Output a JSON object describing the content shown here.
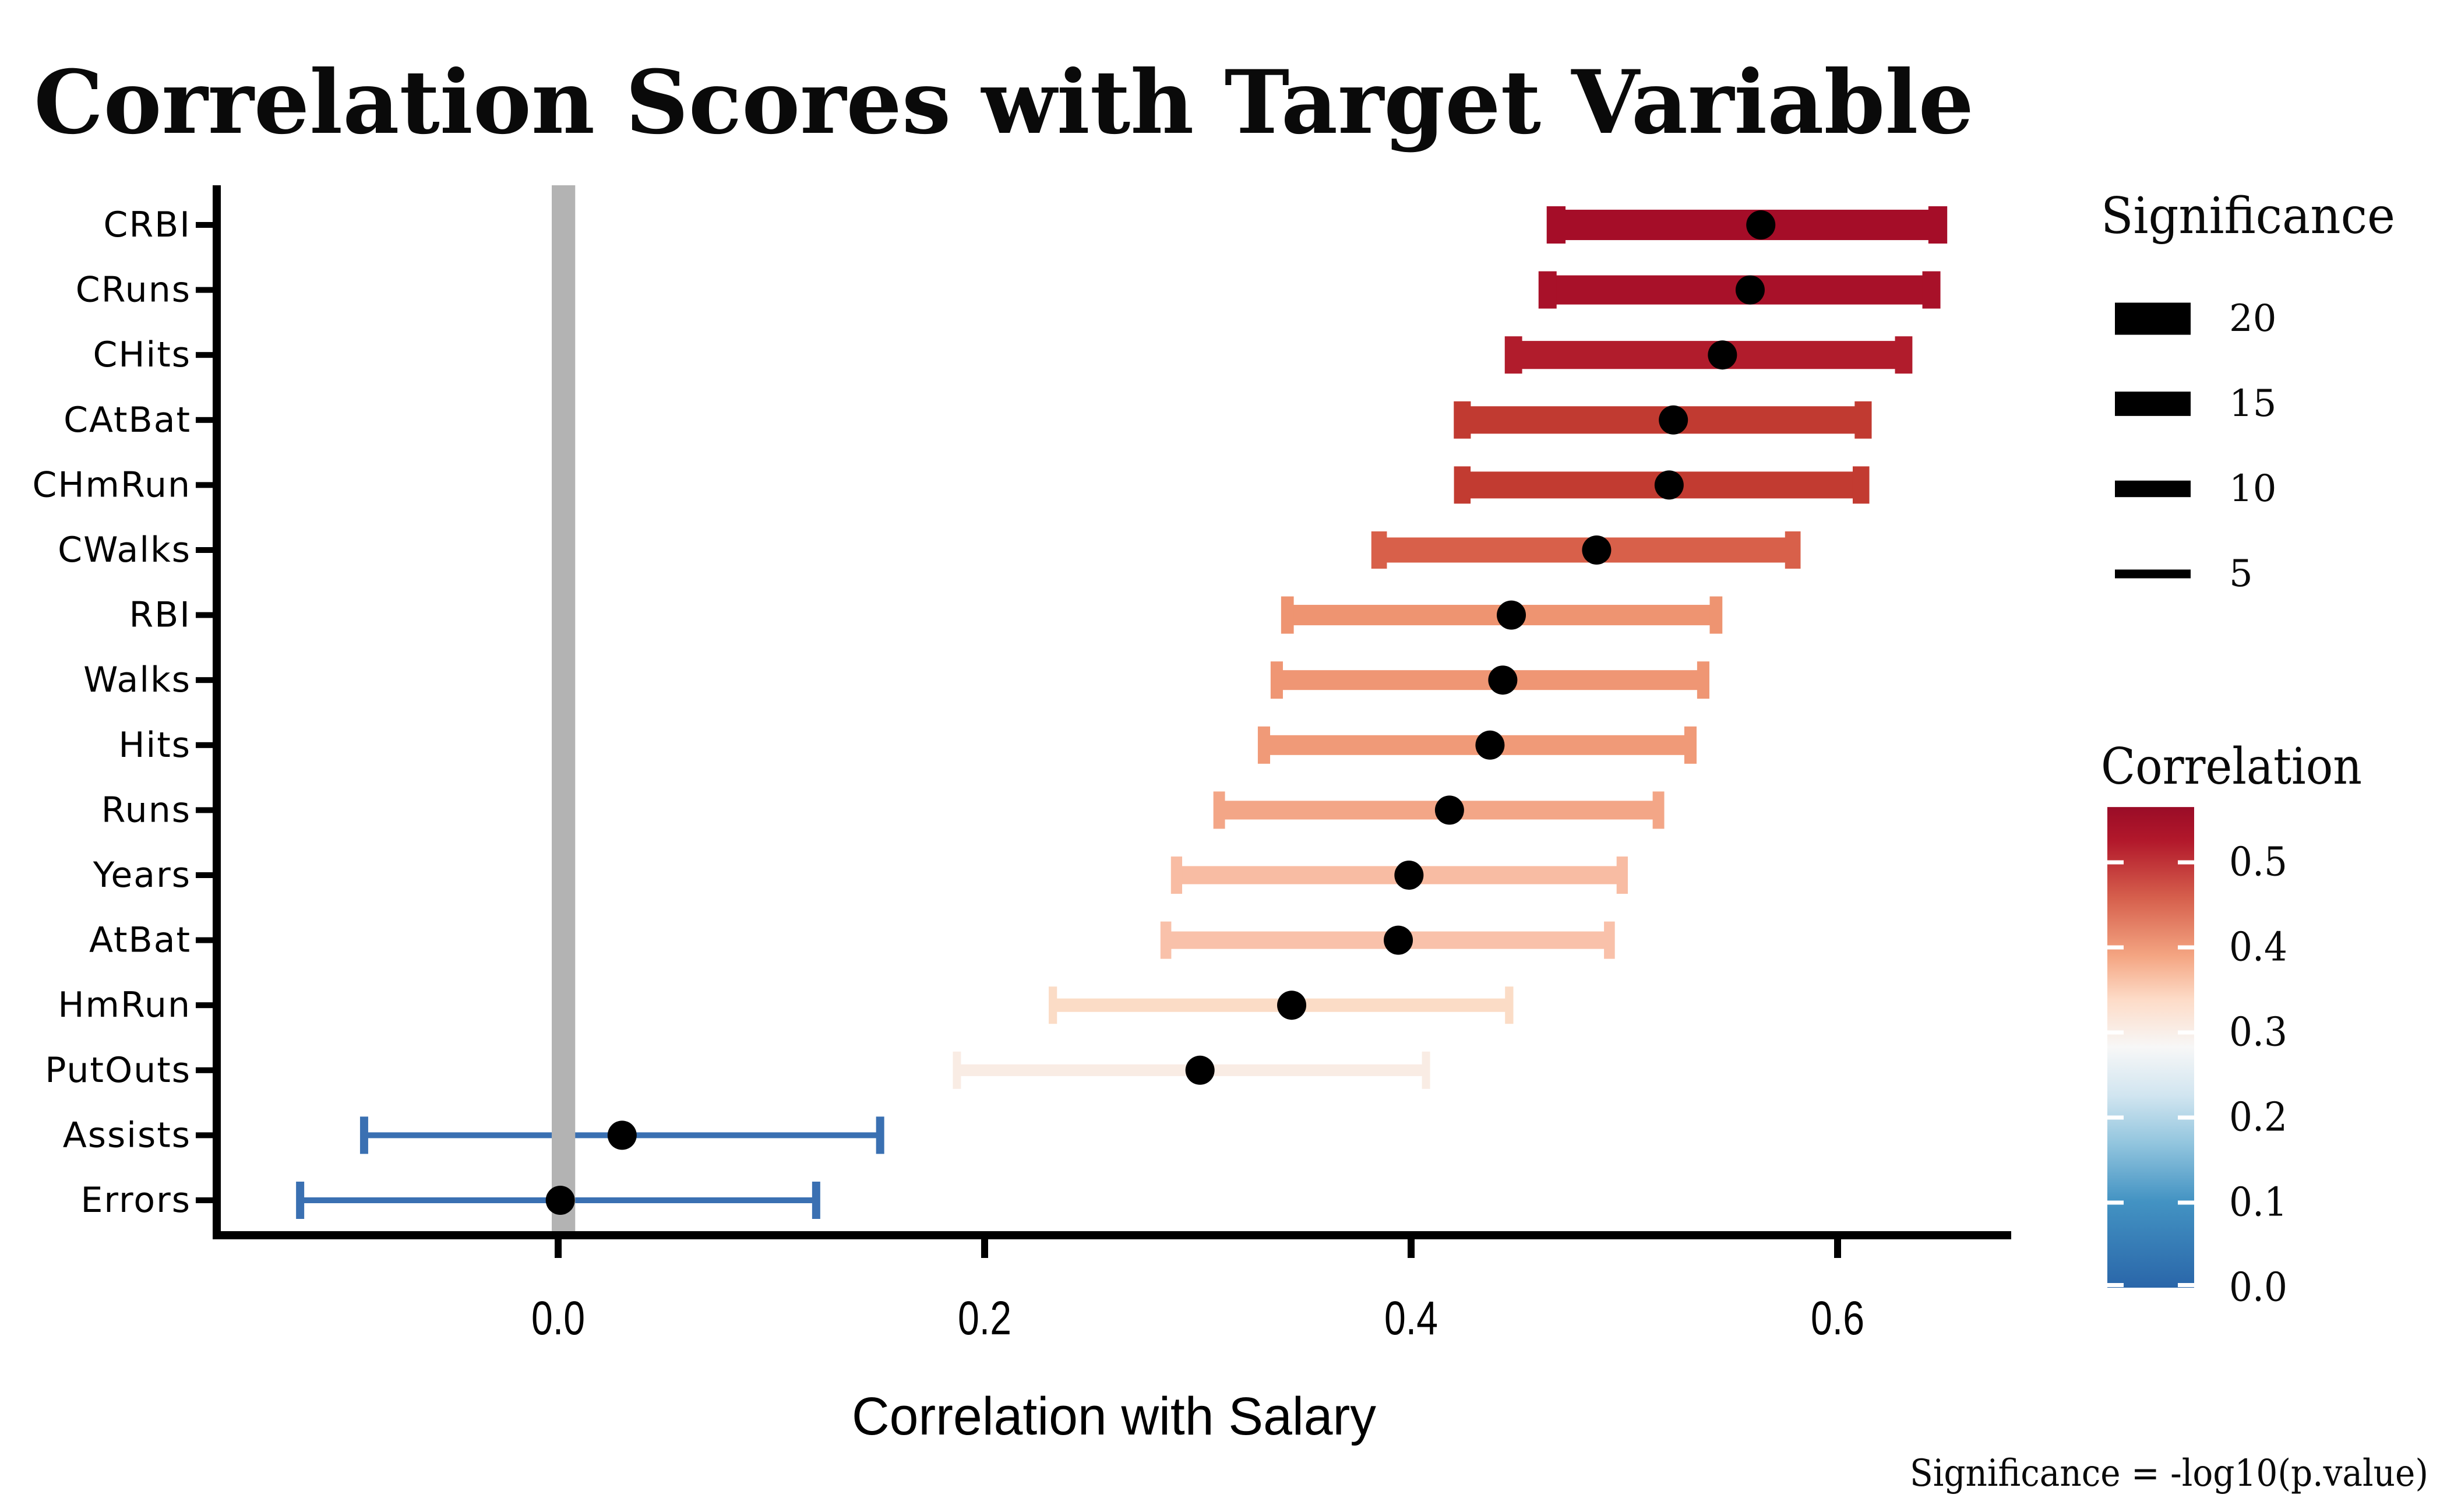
{
  "page": {
    "background": "#ffffff"
  },
  "chart_data": {
    "type": "dotplot-errorbar",
    "title": "Correlation Scores with Target Variable",
    "xlabel": "Correlation with Salary",
    "caption": "Significance = -log10(p.value)",
    "xlim": [
      -0.16,
      0.68
    ],
    "x_ticks": [
      {
        "label": "0.0",
        "value": 0.0
      },
      {
        "label": "0.2",
        "value": 0.2
      },
      {
        "label": "0.4",
        "value": 0.4
      },
      {
        "label": "0.6",
        "value": 0.6
      }
    ],
    "grid": false,
    "point_color": "#000000",
    "axis_color": "#000000",
    "reference_band": {
      "from": -0.003,
      "to": 0.008,
      "color": "#b3b3b3"
    },
    "rows": [
      {
        "label": "CRBI",
        "estimate": 0.564,
        "ci_low": 0.468,
        "ci_high": 0.647,
        "significance": 18.9,
        "color": "#a50d28"
      },
      {
        "label": "CRuns",
        "estimate": 0.559,
        "ci_low": 0.464,
        "ci_high": 0.644,
        "significance": 18.1,
        "color": "#a81129"
      },
      {
        "label": "CHits",
        "estimate": 0.546,
        "ci_low": 0.448,
        "ci_high": 0.631,
        "significance": 17.4,
        "color": "#b11c2c"
      },
      {
        "label": "CAtBat",
        "estimate": 0.523,
        "ci_low": 0.424,
        "ci_high": 0.612,
        "significance": 17.0,
        "color": "#c13a31"
      },
      {
        "label": "CHmRun",
        "estimate": 0.521,
        "ci_low": 0.424,
        "ci_high": 0.611,
        "significance": 16.6,
        "color": "#c23b31"
      },
      {
        "label": "CWalks",
        "estimate": 0.487,
        "ci_low": 0.385,
        "ci_high": 0.579,
        "significance": 15.5,
        "color": "#d8604a"
      },
      {
        "label": "RBI",
        "estimate": 0.447,
        "ci_low": 0.342,
        "ci_high": 0.543,
        "significance": 12.5,
        "color": "#ee9471"
      },
      {
        "label": "Walks",
        "estimate": 0.443,
        "ci_low": 0.337,
        "ci_high": 0.537,
        "significance": 12.1,
        "color": "#ef9674"
      },
      {
        "label": "Hits",
        "estimate": 0.437,
        "ci_low": 0.331,
        "ci_high": 0.531,
        "significance": 12.1,
        "color": "#f09a78"
      },
      {
        "label": "Runs",
        "estimate": 0.418,
        "ci_low": 0.31,
        "ci_high": 0.516,
        "significance": 11.4,
        "color": "#f3a687"
      },
      {
        "label": "Years",
        "estimate": 0.399,
        "ci_low": 0.29,
        "ci_high": 0.499,
        "significance": 11.0,
        "color": "#f8bca3"
      },
      {
        "label": "AtBat",
        "estimate": 0.394,
        "ci_low": 0.285,
        "ci_high": 0.493,
        "significance": 10.6,
        "color": "#f9c1aa"
      },
      {
        "label": "HmRun",
        "estimate": 0.344,
        "ci_low": 0.232,
        "ci_high": 0.446,
        "significance": 8.0,
        "color": "#fbdcc6"
      },
      {
        "label": "PutOuts",
        "estimate": 0.301,
        "ci_low": 0.187,
        "ci_high": 0.407,
        "significance": 6.9,
        "color": "#f9ece4"
      },
      {
        "label": "Assists",
        "estimate": 0.03,
        "ci_low": -0.091,
        "ci_high": 0.151,
        "significance": 3.1,
        "color": "#3a70b2"
      },
      {
        "label": "Errors",
        "estimate": 0.001,
        "ci_low": -0.121,
        "ci_high": 0.121,
        "significance": 3.1,
        "color": "#3a70b2"
      }
    ],
    "legends": {
      "significance": {
        "title": "Significance",
        "key_color": "#000000",
        "entries": [
          {
            "label": "20",
            "value": 20
          },
          {
            "label": "15",
            "value": 15
          },
          {
            "label": "10",
            "value": 10
          },
          {
            "label": "5",
            "value": 5
          }
        ]
      },
      "correlation": {
        "title": "Correlation",
        "max_value": 0.565,
        "tick_color": "#ffffff",
        "ticks": [
          {
            "label": "0.5",
            "value": 0.5
          },
          {
            "label": "0.4",
            "value": 0.4
          },
          {
            "label": "0.3",
            "value": 0.3
          },
          {
            "label": "0.2",
            "value": 0.2
          },
          {
            "label": "0.1",
            "value": 0.1
          },
          {
            "label": "0.0",
            "value": 0.0
          }
        ],
        "gradient": [
          {
            "offset": 0,
            "color": "#9a0c27"
          },
          {
            "offset": 7,
            "color": "#b2182b"
          },
          {
            "offset": 19,
            "color": "#d6604d"
          },
          {
            "offset": 31,
            "color": "#f4a582"
          },
          {
            "offset": 40,
            "color": "#fddbc7"
          },
          {
            "offset": 50,
            "color": "#f7f7f7"
          },
          {
            "offset": 60,
            "color": "#d1e5f0"
          },
          {
            "offset": 70,
            "color": "#92c5de"
          },
          {
            "offset": 82,
            "color": "#4393c3"
          },
          {
            "offset": 100,
            "color": "#2a66a9"
          }
        ]
      }
    }
  }
}
